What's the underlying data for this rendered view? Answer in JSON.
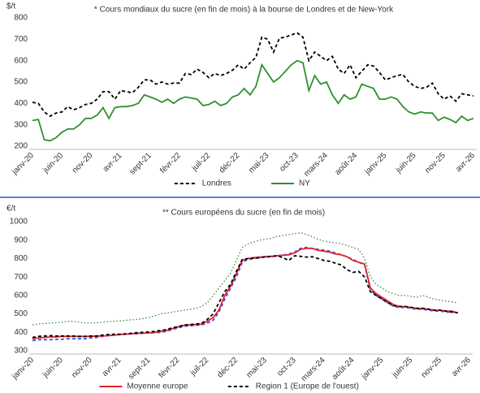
{
  "chart_data": [
    {
      "type": "line",
      "title": "* Cours mondiaux du sucre (en fin de mois) à la bourse de Londres et de New-York",
      "y_label": "$/t",
      "categories": [
        "janv-20",
        null,
        null,
        null,
        null,
        "juin-20",
        null,
        null,
        null,
        null,
        "nov-20",
        null,
        null,
        null,
        null,
        "avr-21",
        null,
        null,
        null,
        null,
        "sept-21",
        null,
        null,
        null,
        null,
        "févr-22",
        null,
        null,
        null,
        null,
        "juil-22",
        null,
        null,
        null,
        null,
        "déc-22",
        null,
        null,
        null,
        null,
        "mai-23",
        null,
        null,
        null,
        null,
        "oct-23",
        null,
        null,
        null,
        null,
        "mars-24",
        null,
        null,
        null,
        null,
        "août-24",
        null,
        null,
        null,
        null,
        "janv-25",
        null,
        null,
        null,
        null,
        "juin-25",
        null,
        null,
        null,
        null,
        "nov-25",
        null,
        null,
        null,
        null,
        "avr-26"
      ],
      "series": [
        {
          "name": "Londres",
          "color": "#000000",
          "style": "dashed",
          "values": [
            405,
            400,
            360,
            340,
            355,
            360,
            385,
            370,
            380,
            395,
            400,
            420,
            455,
            455,
            420,
            460,
            455,
            450,
            475,
            510,
            510,
            490,
            500,
            490,
            495,
            495,
            540,
            535,
            560,
            545,
            520,
            540,
            530,
            540,
            555,
            580,
            560,
            590,
            615,
            710,
            700,
            640,
            705,
            710,
            720,
            730,
            710,
            600,
            640,
            620,
            600,
            620,
            560,
            540,
            580,
            520,
            550,
            580,
            575,
            545,
            510,
            520,
            530,
            535,
            500,
            480,
            470,
            475,
            495,
            445,
            420,
            435,
            410,
            445,
            440,
            435
          ]
        },
        {
          "name": "NY",
          "color": "#2f8f2f",
          "style": "solid",
          "values": [
            320,
            325,
            230,
            225,
            240,
            265,
            280,
            280,
            300,
            330,
            330,
            345,
            380,
            330,
            380,
            385,
            385,
            390,
            400,
            440,
            430,
            420,
            405,
            420,
            400,
            420,
            430,
            425,
            420,
            390,
            395,
            410,
            390,
            400,
            430,
            440,
            470,
            440,
            480,
            580,
            540,
            500,
            520,
            550,
            580,
            600,
            590,
            460,
            530,
            490,
            500,
            440,
            400,
            440,
            420,
            430,
            490,
            480,
            470,
            420,
            420,
            430,
            420,
            385,
            360,
            350,
            360,
            355,
            355,
            320,
            335,
            325,
            310,
            340,
            320,
            330
          ]
        }
      ],
      "ylim": [
        200,
        800
      ],
      "yticks": [
        200,
        300,
        400,
        500,
        600,
        700,
        800
      ],
      "grid": false
    },
    {
      "type": "line",
      "title": "** Cours européens du sucre (en fin de mois)",
      "y_label": "€/t",
      "categories": [
        "janv-20",
        null,
        null,
        null,
        null,
        "juin-20",
        null,
        null,
        null,
        null,
        "nov-20",
        null,
        null,
        null,
        null,
        "avr-21",
        null,
        null,
        null,
        null,
        "sept-21",
        null,
        null,
        null,
        null,
        "févr-22",
        null,
        null,
        null,
        null,
        "juil-22",
        null,
        null,
        null,
        null,
        "déc-22",
        null,
        null,
        null,
        null,
        "mai-23",
        null,
        null,
        null,
        null,
        "oct-23",
        null,
        null,
        null,
        null,
        "mars-24",
        null,
        null,
        null,
        null,
        "août-24",
        null,
        null,
        null,
        null,
        "janv-25",
        null,
        null,
        null,
        null,
        "juin-25",
        null,
        null,
        null,
        null,
        "nov-25",
        null,
        null,
        null,
        null,
        "avr-26"
      ],
      "series": [
        {
          "color": "#3a8a3a",
          "style": "dotted",
          "values": [
            440,
            445,
            448,
            450,
            452,
            455,
            460,
            460,
            455,
            450,
            450,
            452,
            455,
            458,
            460,
            462,
            465,
            468,
            470,
            475,
            480,
            490,
            500,
            505,
            510,
            515,
            520,
            525,
            530,
            540,
            560,
            600,
            640,
            680,
            720,
            790,
            860,
            880,
            890,
            900,
            905,
            910,
            920,
            925,
            930,
            935,
            940,
            930,
            920,
            905,
            895,
            890,
            885,
            880,
            870,
            860,
            850,
            800,
            700,
            660,
            640,
            620,
            610,
            600,
            600,
            595,
            590,
            600,
            590,
            580,
            575,
            570,
            565,
            560,
            null,
            null
          ]
        },
        {
          "color": "#3b4fd8",
          "style": "dashed",
          "values": [
            355,
            360,
            360,
            360,
            362,
            362,
            365,
            365,
            365,
            365,
            370,
            372,
            378,
            382,
            385,
            388,
            390,
            392,
            392,
            395,
            397,
            398,
            400,
            405,
            415,
            425,
            432,
            435,
            438,
            440,
            450,
            465,
            510,
            580,
            640,
            700,
            780,
            795,
            800,
            805,
            808,
            810,
            815,
            818,
            825,
            835,
            855,
            860,
            855,
            850,
            845,
            840,
            830,
            820,
            810,
            795,
            780,
            765,
            630,
            600,
            580,
            560,
            540,
            535,
            535,
            530,
            525,
            525,
            520,
            515,
            515,
            510,
            510,
            508,
            null,
            null
          ]
        },
        {
          "name": "Moyenne europe",
          "color": "#e3232b",
          "style": "solid",
          "values": [
            365,
            370,
            372,
            375,
            375,
            378,
            378,
            378,
            378,
            378,
            378,
            380,
            380,
            382,
            385,
            388,
            390,
            392,
            395,
            395,
            397,
            400,
            405,
            410,
            420,
            430,
            438,
            440,
            442,
            445,
            460,
            480,
            520,
            600,
            650,
            720,
            790,
            800,
            805,
            808,
            810,
            812,
            815,
            818,
            820,
            830,
            850,
            855,
            855,
            845,
            840,
            835,
            825,
            820,
            810,
            790,
            780,
            770,
            640,
            610,
            590,
            570,
            550,
            540,
            540,
            535,
            530,
            530,
            525,
            520,
            520,
            515,
            515,
            505,
            null,
            null
          ]
        },
        {
          "name": "Region 1 (Europe de l'ouest)",
          "color": "#000000",
          "style": "dashed",
          "values": [
            372,
            378,
            380,
            382,
            380,
            380,
            380,
            380,
            378,
            378,
            380,
            380,
            385,
            388,
            390,
            390,
            392,
            395,
            398,
            400,
            402,
            405,
            410,
            415,
            425,
            430,
            440,
            442,
            445,
            448,
            470,
            500,
            560,
            620,
            660,
            730,
            795,
            800,
            802,
            805,
            810,
            812,
            815,
            805,
            790,
            815,
            812,
            808,
            810,
            800,
            790,
            785,
            775,
            765,
            740,
            725,
            730,
            700,
            620,
            600,
            580,
            560,
            545,
            540,
            540,
            535,
            530,
            530,
            525,
            520,
            520,
            515,
            510,
            505,
            null,
            null
          ]
        }
      ],
      "ylim": [
        300,
        1000
      ],
      "yticks": [
        300,
        400,
        500,
        600,
        700,
        800,
        900,
        1000
      ],
      "grid": false
    }
  ]
}
